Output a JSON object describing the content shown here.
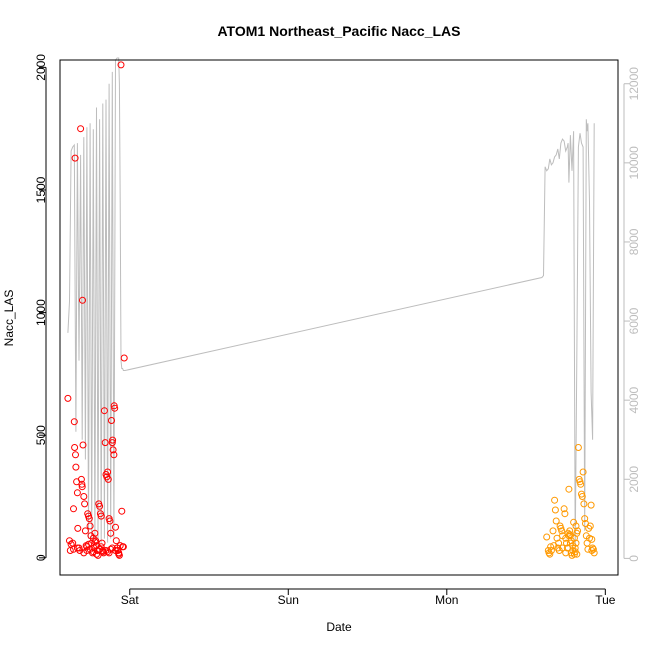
{
  "chart_data": {
    "type": "scatter",
    "title": "ATOM1 Northeast_Pacific Nacc_LAS",
    "xlabel": "Date",
    "ylabel": "Nacc_LAS",
    "x_ticks": [
      "Sat",
      "Sun",
      "Mon",
      "Tue"
    ],
    "x_range_days": [
      -0.44,
      3.08
    ],
    "ylim": [
      -70,
      2030
    ],
    "y_ticks": [
      0,
      500,
      1000,
      1500,
      2000
    ],
    "y2lim": [
      -420,
      12600
    ],
    "y2_ticks": [
      0,
      2000,
      4000,
      6000,
      8000,
      10000,
      12000
    ],
    "grid": false,
    "colors": {
      "series1": "#ff0000",
      "series2": "#ff9900",
      "line": "#bdbdbd"
    },
    "series": [
      {
        "points": [
          [
            -0.39,
            650
          ],
          [
            -0.38,
            70
          ],
          [
            -0.375,
            30
          ],
          [
            -0.37,
            55
          ],
          [
            -0.36,
            60
          ],
          [
            -0.355,
            200
          ],
          [
            -0.35,
            555
          ],
          [
            -0.348,
            450
          ],
          [
            -0.345,
            1630
          ],
          [
            -0.342,
            420
          ],
          [
            -0.34,
            370
          ],
          [
            -0.335,
            310
          ],
          [
            -0.33,
            265
          ],
          [
            -0.328,
            120
          ],
          [
            -0.32,
            40
          ],
          [
            -0.31,
            1750
          ],
          [
            -0.305,
            320
          ],
          [
            -0.302,
            300
          ],
          [
            -0.3,
            290
          ],
          [
            -0.298,
            1050
          ],
          [
            -0.295,
            460
          ],
          [
            -0.29,
            250
          ],
          [
            -0.285,
            220
          ],
          [
            -0.28,
            110
          ],
          [
            -0.275,
            50
          ],
          [
            -0.27,
            30
          ],
          [
            -0.265,
            180
          ],
          [
            -0.26,
            170
          ],
          [
            -0.255,
            160
          ],
          [
            -0.25,
            130
          ],
          [
            -0.245,
            90
          ],
          [
            -0.24,
            60
          ],
          [
            -0.235,
            20
          ],
          [
            -0.23,
            80
          ],
          [
            -0.225,
            40
          ],
          [
            -0.22,
            100
          ],
          [
            -0.215,
            70
          ],
          [
            -0.21,
            50
          ],
          [
            -0.205,
            30
          ],
          [
            -0.2,
            10
          ],
          [
            -0.195,
            220
          ],
          [
            -0.19,
            210
          ],
          [
            -0.185,
            180
          ],
          [
            -0.18,
            170
          ],
          [
            -0.175,
            60
          ],
          [
            -0.17,
            30
          ],
          [
            -0.165,
            20
          ],
          [
            -0.16,
            600
          ],
          [
            -0.155,
            470
          ],
          [
            -0.15,
            340
          ],
          [
            -0.145,
            330
          ],
          [
            -0.14,
            350
          ],
          [
            -0.135,
            320
          ],
          [
            -0.13,
            160
          ],
          [
            -0.125,
            150
          ],
          [
            -0.12,
            100
          ],
          [
            -0.115,
            560
          ],
          [
            -0.11,
            470
          ],
          [
            -0.108,
            480
          ],
          [
            -0.105,
            440
          ],
          [
            -0.1,
            420
          ],
          [
            -0.098,
            620
          ],
          [
            -0.095,
            610
          ],
          [
            -0.09,
            125
          ],
          [
            -0.085,
            70
          ],
          [
            -0.08,
            40
          ],
          [
            -0.075,
            30
          ],
          [
            -0.07,
            20
          ],
          [
            -0.065,
            10
          ],
          [
            -0.06,
            50
          ],
          [
            -0.055,
            2010
          ],
          [
            -0.05,
            190
          ],
          [
            -0.045,
            45
          ],
          [
            -0.04,
            45
          ],
          [
            -0.035,
            815
          ],
          [
            -0.33,
            40
          ],
          [
            -0.315,
            30
          ],
          [
            -0.29,
            20
          ],
          [
            -0.27,
            45
          ],
          [
            -0.25,
            35
          ],
          [
            -0.23,
            25
          ],
          [
            -0.21,
            15
          ],
          [
            -0.19,
            35
          ],
          [
            -0.17,
            25
          ],
          [
            -0.15,
            30
          ],
          [
            -0.13,
            20
          ],
          [
            -0.11,
            40
          ],
          [
            -0.09,
            30
          ],
          [
            -0.07,
            15
          ],
          [
            -0.355,
            35
          ],
          [
            -0.26,
            55
          ],
          [
            -0.22,
            65
          ],
          [
            -0.18,
            45
          ],
          [
            -0.14,
            25
          ],
          [
            -0.12,
            35
          ]
        ]
      },
      {
        "points": [
          [
            2.63,
            85
          ],
          [
            2.64,
            30
          ],
          [
            2.645,
            20
          ],
          [
            2.65,
            15
          ],
          [
            2.655,
            45
          ],
          [
            2.66,
            30
          ],
          [
            2.67,
            110
          ],
          [
            2.675,
            50
          ],
          [
            2.68,
            235
          ],
          [
            2.685,
            195
          ],
          [
            2.69,
            150
          ],
          [
            2.695,
            80
          ],
          [
            2.7,
            40
          ],
          [
            2.705,
            60
          ],
          [
            2.71,
            30
          ],
          [
            2.715,
            130
          ],
          [
            2.72,
            120
          ],
          [
            2.725,
            110
          ],
          [
            2.73,
            90
          ],
          [
            2.74,
            200
          ],
          [
            2.745,
            180
          ],
          [
            2.75,
            80
          ],
          [
            2.755,
            60
          ],
          [
            2.76,
            40
          ],
          [
            2.765,
            100
          ],
          [
            2.77,
            90
          ],
          [
            2.775,
            95
          ],
          [
            2.78,
            60
          ],
          [
            2.785,
            20
          ],
          [
            2.79,
            10
          ],
          [
            2.795,
            50
          ],
          [
            2.8,
            145
          ],
          [
            2.805,
            80
          ],
          [
            2.81,
            40
          ],
          [
            2.815,
            130
          ],
          [
            2.82,
            100
          ],
          [
            2.825,
            110
          ],
          [
            2.83,
            450
          ],
          [
            2.835,
            320
          ],
          [
            2.84,
            310
          ],
          [
            2.845,
            300
          ],
          [
            2.85,
            260
          ],
          [
            2.855,
            250
          ],
          [
            2.86,
            350
          ],
          [
            2.865,
            220
          ],
          [
            2.87,
            160
          ],
          [
            2.875,
            140
          ],
          [
            2.88,
            90
          ],
          [
            2.885,
            60
          ],
          [
            2.89,
            35
          ],
          [
            2.895,
            120
          ],
          [
            2.9,
            80
          ],
          [
            2.905,
            130
          ],
          [
            2.91,
            215
          ],
          [
            2.915,
            75
          ],
          [
            2.92,
            40
          ],
          [
            2.925,
            35
          ],
          [
            2.93,
            20
          ],
          [
            2.915,
            30
          ],
          [
            2.795,
            30
          ],
          [
            2.805,
            15
          ],
          [
            2.81,
            25
          ],
          [
            2.815,
            60
          ],
          [
            2.785,
            70
          ],
          [
            2.82,
            15
          ],
          [
            2.75,
            20
          ],
          [
            2.73,
            40
          ],
          [
            2.77,
            280
          ],
          [
            2.775,
            110
          ],
          [
            2.78,
            90
          ]
        ]
      }
    ],
    "line": {
      "x": [
        -0.39,
        -0.38,
        -0.37,
        -0.36,
        -0.35,
        -0.34,
        -0.33,
        -0.32,
        -0.31,
        -0.3,
        -0.29,
        -0.28,
        -0.27,
        -0.26,
        -0.25,
        -0.24,
        -0.23,
        -0.22,
        -0.21,
        -0.2,
        -0.19,
        -0.18,
        -0.17,
        -0.16,
        -0.15,
        -0.14,
        -0.13,
        -0.12,
        -0.11,
        -0.1,
        -0.09,
        -0.08,
        -0.07,
        -0.065,
        -0.06,
        -0.055,
        -0.05,
        -0.045,
        -0.04,
        -0.035,
        -0.03,
        2.6,
        2.61,
        2.62,
        2.63,
        2.64,
        2.65,
        2.66,
        2.67,
        2.68,
        2.69,
        2.7,
        2.71,
        2.72,
        2.725,
        2.73,
        2.74,
        2.75,
        2.76,
        2.765,
        2.77,
        2.78,
        2.79,
        2.8,
        2.81,
        2.82,
        2.83,
        2.84,
        2.85,
        2.86,
        2.87,
        2.88,
        2.885,
        2.89,
        2.9,
        2.91,
        2.92,
        2.93
      ],
      "y": [
        5700,
        6500,
        10300,
        10400,
        10450,
        3200,
        10500,
        5000,
        10200,
        3000,
        10650,
        2500,
        10900,
        500,
        11000,
        500,
        10850,
        500,
        11400,
        300,
        11100,
        400,
        11500,
        500,
        11600,
        400,
        12000,
        500,
        12300,
        500,
        12600,
        12650,
        12650,
        12000,
        9000,
        5000,
        4800,
        4800,
        4750,
        4750,
        4750,
        7100,
        7150,
        9900,
        9800,
        9850,
        10100,
        9950,
        10000,
        10150,
        10200,
        10350,
        10100,
        10500,
        10550,
        10600,
        10550,
        10300,
        10400,
        10500,
        9500,
        10700,
        9800,
        10800,
        200,
        5000,
        10400,
        10750,
        10500,
        10400,
        700,
        11100,
        10800,
        11000,
        9000,
        4200,
        3000,
        11000
      ]
    }
  }
}
